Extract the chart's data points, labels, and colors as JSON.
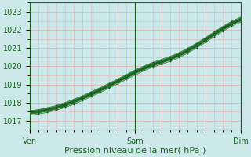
{
  "title": "",
  "xlabel": "Pression niveau de la mer( hPa )",
  "xlim": [
    0,
    48
  ],
  "ylim": [
    1016.5,
    1023.5
  ],
  "yticks": [
    1017,
    1018,
    1019,
    1020,
    1021,
    1022,
    1023
  ],
  "xtick_labels": [
    "Ven",
    "Sam",
    "Dim"
  ],
  "xtick_positions": [
    0,
    24,
    48
  ],
  "bg_color": "#cce8e8",
  "grid_color": "#e8b4b8",
  "line_color": "#1a6620",
  "series": [
    [
      1017.55,
      1017.62,
      1017.72,
      1017.84,
      1018.0,
      1018.18,
      1018.38,
      1018.6,
      1018.82,
      1019.06,
      1019.3,
      1019.55,
      1019.8,
      1020.02,
      1020.22,
      1020.38,
      1020.55,
      1020.75,
      1021.0,
      1021.28,
      1021.58,
      1021.9,
      1022.2,
      1022.48,
      1022.7
    ],
    [
      1017.52,
      1017.59,
      1017.68,
      1017.8,
      1017.96,
      1018.14,
      1018.34,
      1018.56,
      1018.78,
      1019.02,
      1019.26,
      1019.51,
      1019.76,
      1019.98,
      1020.18,
      1020.34,
      1020.51,
      1020.71,
      1020.96,
      1021.24,
      1021.54,
      1021.86,
      1022.16,
      1022.44,
      1022.66
    ],
    [
      1017.5,
      1017.57,
      1017.66,
      1017.78,
      1017.93,
      1018.11,
      1018.31,
      1018.53,
      1018.75,
      1018.99,
      1019.23,
      1019.48,
      1019.73,
      1019.95,
      1020.15,
      1020.31,
      1020.48,
      1020.68,
      1020.93,
      1021.21,
      1021.51,
      1021.83,
      1022.13,
      1022.41,
      1022.63
    ],
    [
      1017.48,
      1017.55,
      1017.64,
      1017.76,
      1017.91,
      1018.09,
      1018.29,
      1018.51,
      1018.73,
      1018.97,
      1019.21,
      1019.46,
      1019.71,
      1019.93,
      1020.13,
      1020.29,
      1020.46,
      1020.66,
      1020.91,
      1021.19,
      1021.49,
      1021.81,
      1022.11,
      1022.39,
      1022.61
    ],
    [
      1017.46,
      1017.53,
      1017.62,
      1017.74,
      1017.89,
      1018.07,
      1018.27,
      1018.49,
      1018.71,
      1018.95,
      1019.19,
      1019.44,
      1019.69,
      1019.91,
      1020.11,
      1020.27,
      1020.44,
      1020.64,
      1020.89,
      1021.17,
      1021.47,
      1021.79,
      1022.09,
      1022.37,
      1022.59
    ],
    [
      1017.44,
      1017.51,
      1017.6,
      1017.72,
      1017.87,
      1018.05,
      1018.25,
      1018.47,
      1018.69,
      1018.93,
      1019.17,
      1019.42,
      1019.67,
      1019.89,
      1020.09,
      1020.25,
      1020.42,
      1020.62,
      1020.87,
      1021.15,
      1021.45,
      1021.77,
      1022.07,
      1022.35,
      1022.57
    ],
    [
      1017.42,
      1017.49,
      1017.58,
      1017.7,
      1017.85,
      1018.03,
      1018.23,
      1018.45,
      1018.67,
      1018.91,
      1019.15,
      1019.4,
      1019.65,
      1019.87,
      1020.07,
      1020.23,
      1020.4,
      1020.6,
      1020.85,
      1021.13,
      1021.43,
      1021.75,
      1022.05,
      1022.33,
      1022.55
    ],
    [
      1017.4,
      1017.47,
      1017.56,
      1017.68,
      1017.83,
      1018.01,
      1018.21,
      1018.43,
      1018.65,
      1018.89,
      1019.13,
      1019.38,
      1019.63,
      1019.85,
      1020.05,
      1020.21,
      1020.38,
      1020.58,
      1020.83,
      1021.11,
      1021.41,
      1021.73,
      1022.03,
      1022.31,
      1022.53
    ],
    [
      1017.38,
      1017.45,
      1017.54,
      1017.66,
      1017.81,
      1017.99,
      1018.19,
      1018.41,
      1018.63,
      1018.87,
      1019.11,
      1019.36,
      1019.61,
      1019.83,
      1020.03,
      1020.19,
      1020.36,
      1020.56,
      1020.81,
      1021.09,
      1021.39,
      1021.71,
      1022.01,
      1022.29,
      1022.51
    ],
    [
      1017.36,
      1017.43,
      1017.52,
      1017.64,
      1017.79,
      1017.97,
      1018.17,
      1018.39,
      1018.61,
      1018.85,
      1019.09,
      1019.34,
      1019.59,
      1019.81,
      1020.01,
      1020.17,
      1020.34,
      1020.54,
      1020.79,
      1021.07,
      1021.37,
      1021.69,
      1021.99,
      1022.27,
      1022.49
    ],
    [
      1017.3,
      1017.37,
      1017.46,
      1017.58,
      1017.73,
      1017.91,
      1018.11,
      1018.33,
      1018.55,
      1018.79,
      1019.03,
      1019.28,
      1019.53,
      1019.75,
      1019.95,
      1020.11,
      1020.28,
      1020.48,
      1020.73,
      1021.01,
      1021.31,
      1021.63,
      1021.93,
      1022.21,
      1022.43
    ]
  ],
  "bold_series": [
    [
      1017.45,
      1017.52,
      1017.61,
      1017.73,
      1017.88,
      1018.06,
      1018.26,
      1018.48,
      1018.7,
      1018.94,
      1019.18,
      1019.43,
      1019.68,
      1019.9,
      1020.1,
      1020.26,
      1020.43,
      1020.63,
      1020.88,
      1021.16,
      1021.46,
      1021.78,
      1022.08,
      1022.36,
      1022.58
    ]
  ],
  "xlabel_fontsize": 8,
  "tick_fontsize": 7
}
